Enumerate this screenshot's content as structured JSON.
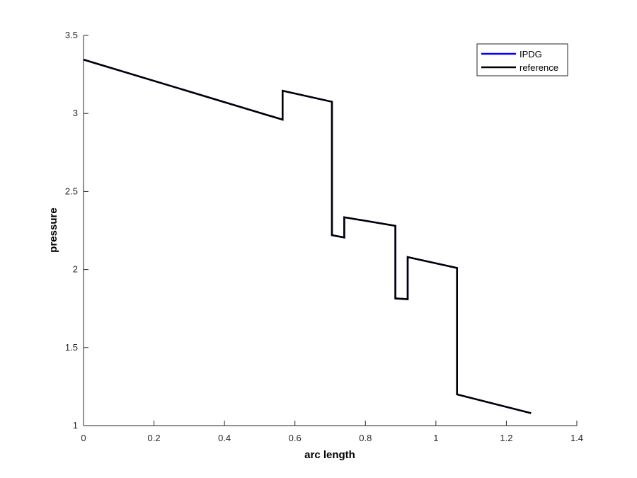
{
  "chart_data": {
    "type": "line",
    "xlabel": "arc length",
    "ylabel": "pressure",
    "xlim": [
      0,
      1.4
    ],
    "ylim": [
      1,
      3.5
    ],
    "x_ticks": [
      "0",
      "0.2",
      "0.4",
      "0.6",
      "0.8",
      "1",
      "1.2",
      "1.4"
    ],
    "y_ticks": [
      "1",
      "1.5",
      "2",
      "2.5",
      "3",
      "3.5"
    ],
    "legend_position": "top-right",
    "series": [
      {
        "name": "IPDG",
        "color": "#0000ff",
        "x": [
          0,
          0.565,
          0.565,
          0.705,
          0.705,
          0.74,
          0.74,
          0.885,
          0.885,
          0.92,
          0.92,
          1.06,
          1.06,
          1.27
        ],
        "y": [
          3.345,
          2.96,
          3.145,
          3.075,
          2.22,
          2.205,
          2.335,
          2.28,
          1.815,
          1.81,
          2.08,
          2.01,
          1.2,
          1.08
        ]
      },
      {
        "name": "reference",
        "color": "#000000",
        "x": [
          0,
          0.565,
          0.565,
          0.705,
          0.705,
          0.74,
          0.74,
          0.885,
          0.885,
          0.92,
          0.92,
          1.06,
          1.06,
          1.27
        ],
        "y": [
          3.345,
          2.96,
          3.145,
          3.075,
          2.22,
          2.205,
          2.335,
          2.28,
          1.815,
          1.81,
          2.08,
          2.01,
          1.2,
          1.08
        ]
      }
    ]
  }
}
